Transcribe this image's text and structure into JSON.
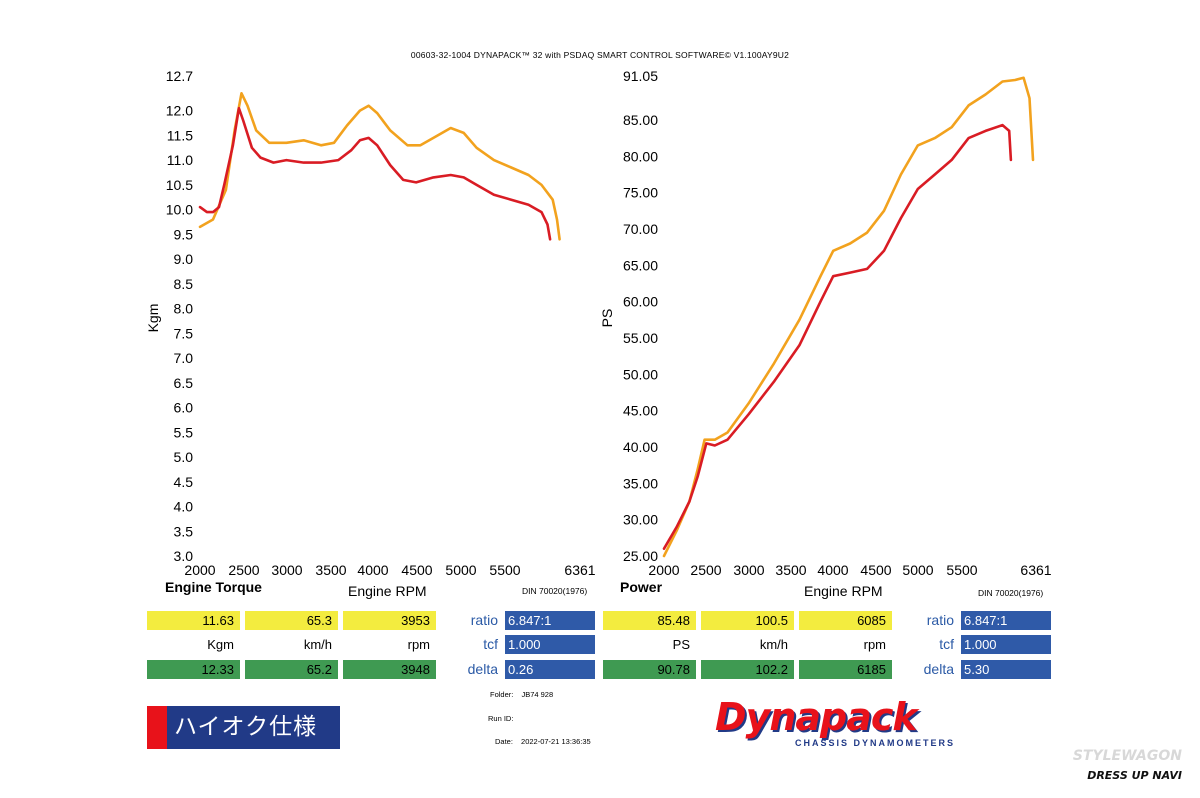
{
  "header": {
    "title": "00603-32-1004 DYNAPACK™ 32 with PSDAQ SMART CONTROL SOFTWARE© V1.100AY9U2"
  },
  "chart_data": [
    {
      "type": "line",
      "title": "Engine Torque",
      "xlabel": "Engine RPM",
      "ylabel": "Kgm",
      "note": "DIN 70020(1976)",
      "xlim": [
        2000,
        6361
      ],
      "ylim": [
        3.0,
        12.7
      ],
      "x_ticks": [
        "2000",
        "2500",
        "3000",
        "3500",
        "4000",
        "4500",
        "5000",
        "5500",
        "6361"
      ],
      "y_ticks": [
        "3.0",
        "3.5",
        "4.0",
        "4.5",
        "5.0",
        "5.5",
        "6.0",
        "6.5",
        "7.0",
        "7.5",
        "8.0",
        "8.5",
        "9.0",
        "9.5",
        "10.0",
        "10.5",
        "11.0",
        "11.5",
        "12.0",
        "12.7"
      ],
      "series": [
        {
          "color": "#f2a21e",
          "points": [
            [
              2000,
              9.65
            ],
            [
              2150,
              9.8
            ],
            [
              2300,
              10.4
            ],
            [
              2400,
              11.6
            ],
            [
              2480,
              12.35
            ],
            [
              2550,
              12.1
            ],
            [
              2650,
              11.6
            ],
            [
              2800,
              11.35
            ],
            [
              3000,
              11.35
            ],
            [
              3200,
              11.4
            ],
            [
              3400,
              11.3
            ],
            [
              3550,
              11.35
            ],
            [
              3700,
              11.7
            ],
            [
              3850,
              12.0
            ],
            [
              3950,
              12.1
            ],
            [
              4050,
              11.95
            ],
            [
              4200,
              11.6
            ],
            [
              4400,
              11.3
            ],
            [
              4550,
              11.3
            ],
            [
              4700,
              11.45
            ],
            [
              4900,
              11.65
            ],
            [
              5050,
              11.55
            ],
            [
              5200,
              11.25
            ],
            [
              5400,
              11.0
            ],
            [
              5600,
              10.85
            ],
            [
              5800,
              10.7
            ],
            [
              5950,
              10.5
            ],
            [
              6080,
              10.2
            ],
            [
              6130,
              9.8
            ],
            [
              6160,
              9.4
            ]
          ]
        },
        {
          "color": "#d91c24",
          "points": [
            [
              2000,
              10.05
            ],
            [
              2080,
              9.95
            ],
            [
              2150,
              9.95
            ],
            [
              2220,
              10.05
            ],
            [
              2280,
              10.5
            ],
            [
              2380,
              11.3
            ],
            [
              2450,
              12.05
            ],
            [
              2500,
              11.8
            ],
            [
              2600,
              11.25
            ],
            [
              2700,
              11.05
            ],
            [
              2850,
              10.95
            ],
            [
              3000,
              11.0
            ],
            [
              3200,
              10.95
            ],
            [
              3400,
              10.95
            ],
            [
              3600,
              11.0
            ],
            [
              3750,
              11.2
            ],
            [
              3850,
              11.4
            ],
            [
              3950,
              11.45
            ],
            [
              4050,
              11.3
            ],
            [
              4200,
              10.9
            ],
            [
              4350,
              10.6
            ],
            [
              4500,
              10.55
            ],
            [
              4700,
              10.65
            ],
            [
              4900,
              10.7
            ],
            [
              5050,
              10.65
            ],
            [
              5200,
              10.5
            ],
            [
              5400,
              10.3
            ],
            [
              5600,
              10.2
            ],
            [
              5800,
              10.1
            ],
            [
              5950,
              9.95
            ],
            [
              6020,
              9.7
            ],
            [
              6050,
              9.4
            ]
          ]
        }
      ]
    },
    {
      "type": "line",
      "title": "Power",
      "xlabel": "Engine RPM",
      "ylabel": "PS",
      "note": "DIN 70020(1976)",
      "xlim": [
        2000,
        6361
      ],
      "ylim": [
        25.0,
        91.05
      ],
      "x_ticks": [
        "2000",
        "2500",
        "3000",
        "3500",
        "4000",
        "4500",
        "5000",
        "5500",
        "6361"
      ],
      "y_ticks": [
        "25.00",
        "30.00",
        "35.00",
        "40.00",
        "45.00",
        "50.00",
        "55.00",
        "60.00",
        "65.00",
        "70.00",
        "75.00",
        "80.00",
        "85.00",
        "91.05"
      ],
      "series": [
        {
          "color": "#f2a21e",
          "points": [
            [
              2000,
              25.0
            ],
            [
              2150,
              28.5
            ],
            [
              2300,
              32.5
            ],
            [
              2400,
              37.0
            ],
            [
              2480,
              41.0
            ],
            [
              2600,
              41.0
            ],
            [
              2750,
              42.0
            ],
            [
              3000,
              46.0
            ],
            [
              3300,
              51.5
            ],
            [
              3600,
              57.5
            ],
            [
              3850,
              63.5
            ],
            [
              4000,
              67.0
            ],
            [
              4200,
              68.0
            ],
            [
              4400,
              69.5
            ],
            [
              4600,
              72.5
            ],
            [
              4800,
              77.5
            ],
            [
              5000,
              81.5
            ],
            [
              5200,
              82.5
            ],
            [
              5400,
              84.0
            ],
            [
              5600,
              87.0
            ],
            [
              5800,
              88.5
            ],
            [
              6000,
              90.3
            ],
            [
              6150,
              90.5
            ],
            [
              6250,
              90.8
            ],
            [
              6320,
              88.0
            ],
            [
              6361,
              79.5
            ]
          ]
        },
        {
          "color": "#d91c24",
          "points": [
            [
              2000,
              26.0
            ],
            [
              2150,
              29.0
            ],
            [
              2300,
              32.5
            ],
            [
              2400,
              36.0
            ],
            [
              2500,
              40.5
            ],
            [
              2600,
              40.2
            ],
            [
              2750,
              41.0
            ],
            [
              3000,
              44.5
            ],
            [
              3300,
              49.0
            ],
            [
              3600,
              54.0
            ],
            [
              3850,
              60.0
            ],
            [
              4000,
              63.5
            ],
            [
              4200,
              64.0
            ],
            [
              4400,
              64.5
            ],
            [
              4600,
              67.0
            ],
            [
              4800,
              71.5
            ],
            [
              5000,
              75.5
            ],
            [
              5200,
              77.5
            ],
            [
              5400,
              79.5
            ],
            [
              5600,
              82.5
            ],
            [
              5800,
              83.5
            ],
            [
              6000,
              84.3
            ],
            [
              6080,
              83.5
            ],
            [
              6100,
              79.5
            ]
          ]
        }
      ]
    }
  ],
  "readout_left": {
    "row1": [
      "11.63",
      "65.3",
      "3953"
    ],
    "units": [
      "Kgm",
      "km/h",
      "rpm"
    ],
    "row2": [
      "12.33",
      "65.2",
      "3948"
    ],
    "params": [
      {
        "label": "ratio",
        "value": "6.847:1"
      },
      {
        "label": "tcf",
        "value": "1.000"
      },
      {
        "label": "delta",
        "value": "0.26"
      }
    ]
  },
  "readout_right": {
    "row1": [
      "85.48",
      "100.5",
      "6085"
    ],
    "units": [
      "PS",
      "km/h",
      "rpm"
    ],
    "row2": [
      "90.78",
      "102.2",
      "6185"
    ],
    "params": [
      {
        "label": "ratio",
        "value": "6.847:1"
      },
      {
        "label": "tcf",
        "value": "1.000"
      },
      {
        "label": "delta",
        "value": "5.30"
      }
    ]
  },
  "meta": {
    "folder_label": "Folder:",
    "folder_value": "JB74 928",
    "run_label": "Run ID:",
    "run_value": "",
    "date_label": "Date:",
    "date_value": "2022-07-21 13:36:35"
  },
  "badge": {
    "text": "ハイオク仕様",
    "colors": {
      "red": "#e8121a",
      "navy": "#213a87"
    }
  },
  "logo": {
    "main": "Dynapack",
    "sub": "CHASSIS DYNAMOMETERS"
  },
  "watermark": {
    "line1": "STYLEWAGON",
    "line2": "DRESS UP NAVI"
  }
}
